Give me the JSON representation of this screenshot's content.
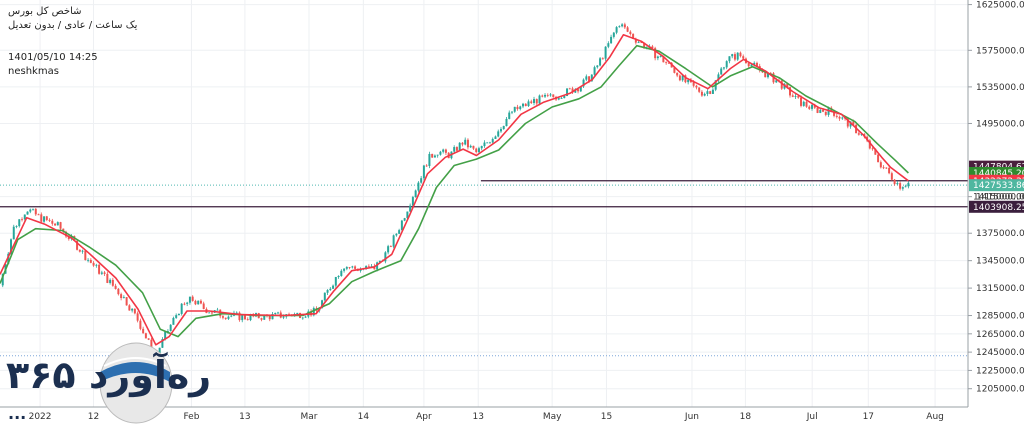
{
  "header": {
    "title": "شاخص کل بورس",
    "subtitle": "یک ساعت / عادی / بدون تعدیل",
    "datetime": "1401/05/10 14:25",
    "author": "neshkmas"
  },
  "logo": {
    "text": "ره‌آورد ۳۶۵",
    "sub": "..."
  },
  "colors": {
    "background": "#ffffff",
    "grid": "#eef0f3",
    "candle_up": "#26a69a",
    "candle_down": "#ef5350",
    "ma_fast": "#f23645",
    "ma_slow": "#43a047",
    "level_line": "#3b1f3d",
    "dotted_teal": "#4fb7b0",
    "dotted_blue": "#7fa7d9"
  },
  "chart_data": {
    "type": "line",
    "title": "",
    "xlabel": "",
    "ylabel": "",
    "ylim": [
      1185000,
      1630000
    ],
    "y_ticks": [
      1625000,
      1575000,
      1535000,
      1495000,
      1415000,
      1375000,
      1345000,
      1315000,
      1285000,
      1265000,
      1245000,
      1225000,
      1205000
    ],
    "y_tick_labels": [
      "1625000.00",
      "1575000.00",
      "1535000.00",
      "1495000.00",
      "1415000.00",
      "1375000.00",
      "1345000.00",
      "1315000.00",
      "1285000.00",
      "1265000.00",
      "1245000.00",
      "1225000.00",
      "1205000.00"
    ],
    "x_ticks": [
      {
        "label": "2022",
        "t": 0.045
      },
      {
        "label": "12",
        "t": 0.105
      },
      {
        "label": "Feb",
        "t": 0.215
      },
      {
        "label": "13",
        "t": 0.275
      },
      {
        "label": "Mar",
        "t": 0.347
      },
      {
        "label": "14",
        "t": 0.408
      },
      {
        "label": "Apr",
        "t": 0.476
      },
      {
        "label": "13",
        "t": 0.537
      },
      {
        "label": "May",
        "t": 0.62
      },
      {
        "label": "15",
        "t": 0.681
      },
      {
        "label": "Jun",
        "t": 0.777
      },
      {
        "label": "18",
        "t": 0.837
      },
      {
        "label": "Jul",
        "t": 0.912
      },
      {
        "label": "17",
        "t": 0.975
      },
      {
        "label": "Aug",
        "t": 1.05
      }
    ],
    "price_path": [
      [
        0.0,
        1318000
      ],
      [
        0.015,
        1380000
      ],
      [
        0.03,
        1402000
      ],
      [
        0.045,
        1392000
      ],
      [
        0.065,
        1383000
      ],
      [
        0.085,
        1363000
      ],
      [
        0.1,
        1345000
      ],
      [
        0.12,
        1325000
      ],
      [
        0.14,
        1303000
      ],
      [
        0.155,
        1280000
      ],
      [
        0.165,
        1258000
      ],
      [
        0.175,
        1242000
      ],
      [
        0.185,
        1262000
      ],
      [
        0.2,
        1290000
      ],
      [
        0.215,
        1303000
      ],
      [
        0.23,
        1292000
      ],
      [
        0.25,
        1286000
      ],
      [
        0.275,
        1283000
      ],
      [
        0.3,
        1284000
      ],
      [
        0.33,
        1286000
      ],
      [
        0.355,
        1289000
      ],
      [
        0.37,
        1315000
      ],
      [
        0.385,
        1340000
      ],
      [
        0.4,
        1336000
      ],
      [
        0.42,
        1337000
      ],
      [
        0.435,
        1355000
      ],
      [
        0.45,
        1385000
      ],
      [
        0.465,
        1420000
      ],
      [
        0.48,
        1455000
      ],
      [
        0.49,
        1465000
      ],
      [
        0.505,
        1460000
      ],
      [
        0.52,
        1475000
      ],
      [
        0.535,
        1463000
      ],
      [
        0.555,
        1482000
      ],
      [
        0.575,
        1508000
      ],
      [
        0.6,
        1520000
      ],
      [
        0.625,
        1525000
      ],
      [
        0.65,
        1535000
      ],
      [
        0.665,
        1548000
      ],
      [
        0.68,
        1575000
      ],
      [
        0.695,
        1605000
      ],
      [
        0.71,
        1590000
      ],
      [
        0.73,
        1575000
      ],
      [
        0.75,
        1560000
      ],
      [
        0.77,
        1540000
      ],
      [
        0.79,
        1528000
      ],
      [
        0.8,
        1533000
      ],
      [
        0.815,
        1565000
      ],
      [
        0.83,
        1570000
      ],
      [
        0.85,
        1555000
      ],
      [
        0.875,
        1540000
      ],
      [
        0.895,
        1520000
      ],
      [
        0.915,
        1510000
      ],
      [
        0.935,
        1508000
      ],
      [
        0.955,
        1493000
      ],
      [
        0.97,
        1480000
      ],
      [
        0.985,
        1455000
      ],
      [
        1.0,
        1438000
      ],
      [
        1.01,
        1427000
      ],
      [
        1.02,
        1430000
      ]
    ],
    "ma_fast_path": [
      [
        0.0,
        1330000
      ],
      [
        0.03,
        1392000
      ],
      [
        0.05,
        1385000
      ],
      [
        0.08,
        1370000
      ],
      [
        0.1,
        1353000
      ],
      [
        0.13,
        1326000
      ],
      [
        0.155,
        1292000
      ],
      [
        0.175,
        1253000
      ],
      [
        0.19,
        1262000
      ],
      [
        0.21,
        1290000
      ],
      [
        0.235,
        1290000
      ],
      [
        0.27,
        1286000
      ],
      [
        0.32,
        1285000
      ],
      [
        0.355,
        1287000
      ],
      [
        0.375,
        1312000
      ],
      [
        0.395,
        1334000
      ],
      [
        0.42,
        1338000
      ],
      [
        0.44,
        1352000
      ],
      [
        0.46,
        1395000
      ],
      [
        0.48,
        1440000
      ],
      [
        0.5,
        1458000
      ],
      [
        0.52,
        1467000
      ],
      [
        0.535,
        1460000
      ],
      [
        0.56,
        1477000
      ],
      [
        0.585,
        1505000
      ],
      [
        0.61,
        1518000
      ],
      [
        0.64,
        1528000
      ],
      [
        0.665,
        1543000
      ],
      [
        0.685,
        1568000
      ],
      [
        0.7,
        1592000
      ],
      [
        0.72,
        1585000
      ],
      [
        0.745,
        1568000
      ],
      [
        0.77,
        1545000
      ],
      [
        0.795,
        1533000
      ],
      [
        0.82,
        1555000
      ],
      [
        0.835,
        1565000
      ],
      [
        0.86,
        1552000
      ],
      [
        0.89,
        1530000
      ],
      [
        0.92,
        1512000
      ],
      [
        0.945,
        1505000
      ],
      [
        0.97,
        1482000
      ],
      [
        0.99,
        1458000
      ],
      [
        1.0,
        1447000
      ],
      [
        1.02,
        1432372
      ]
    ],
    "ma_slow_path": [
      [
        0.0,
        1320000
      ],
      [
        0.02,
        1368000
      ],
      [
        0.04,
        1380000
      ],
      [
        0.07,
        1378000
      ],
      [
        0.1,
        1360000
      ],
      [
        0.13,
        1340000
      ],
      [
        0.16,
        1310000
      ],
      [
        0.18,
        1270000
      ],
      [
        0.2,
        1262000
      ],
      [
        0.22,
        1282000
      ],
      [
        0.25,
        1287000
      ],
      [
        0.29,
        1285000
      ],
      [
        0.34,
        1285000
      ],
      [
        0.37,
        1298000
      ],
      [
        0.395,
        1322000
      ],
      [
        0.42,
        1333000
      ],
      [
        0.45,
        1345000
      ],
      [
        0.47,
        1380000
      ],
      [
        0.49,
        1425000
      ],
      [
        0.51,
        1449000
      ],
      [
        0.535,
        1456000
      ],
      [
        0.56,
        1466000
      ],
      [
        0.59,
        1495000
      ],
      [
        0.62,
        1513000
      ],
      [
        0.65,
        1522000
      ],
      [
        0.675,
        1535000
      ],
      [
        0.695,
        1558000
      ],
      [
        0.715,
        1580000
      ],
      [
        0.74,
        1574000
      ],
      [
        0.77,
        1555000
      ],
      [
        0.8,
        1535000
      ],
      [
        0.82,
        1547000
      ],
      [
        0.845,
        1557000
      ],
      [
        0.875,
        1545000
      ],
      [
        0.905,
        1525000
      ],
      [
        0.935,
        1510000
      ],
      [
        0.96,
        1497000
      ],
      [
        0.985,
        1473000
      ],
      [
        1.005,
        1455000
      ],
      [
        1.02,
        1440845
      ]
    ],
    "horizontal_levels": [
      {
        "value": 1432372.33,
        "from_t": 0.54,
        "to_t": 1.02,
        "style": "solid"
      },
      {
        "value": 1403908.25,
        "from_t": 0.0,
        "to_t": 1.02,
        "style": "solid"
      },
      {
        "value": 1427533.86,
        "from_t": 0.0,
        "to_t": 1.02,
        "style": "dotted"
      },
      {
        "value": 1241000,
        "from_t": 0.0,
        "to_t": 1.02,
        "style": "dotted"
      }
    ],
    "price_labels": [
      {
        "text": "1447804.62",
        "value": 1447804.62,
        "color": "#4a1f3d"
      },
      {
        "text": "1440845.20",
        "value": 1440845.2,
        "color": "#2e8b2e"
      },
      {
        "text": "1432372.33",
        "value": 1432372.33,
        "color": "#f23645"
      },
      {
        "text": "1427533.86",
        "value": 1427533.86,
        "color": "#4fb7a0"
      },
      {
        "text": "1415000.00",
        "value": 1415000,
        "color": "none"
      },
      {
        "text": "1403908.25",
        "value": 1403908.25,
        "color": "#3b1f3d"
      }
    ]
  }
}
